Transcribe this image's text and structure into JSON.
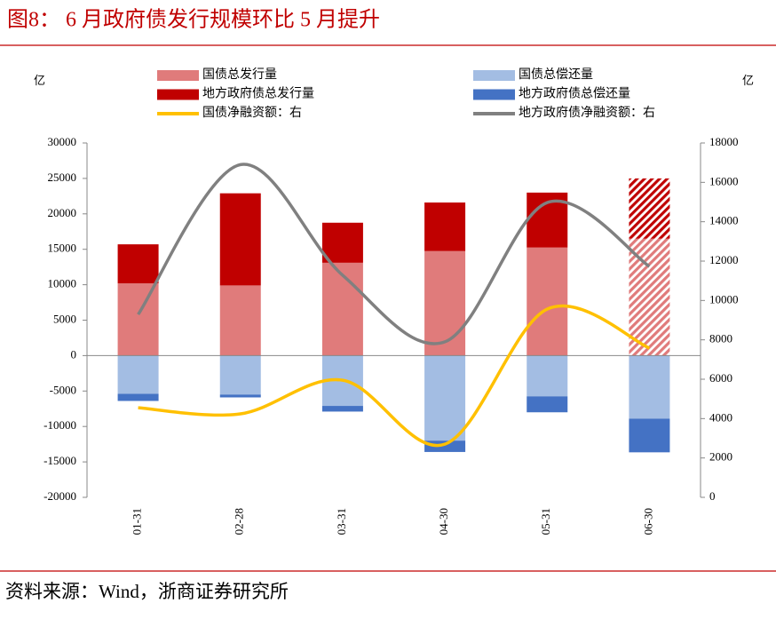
{
  "chart_data": {
    "type": "combo",
    "title": "图8：  6 月政府债发行规模环比 5 月提升",
    "source": "资料来源：Wind，浙商证券研究所",
    "y_unit": "亿",
    "y2_unit": "亿",
    "categories": [
      "01-31",
      "02-28",
      "03-31",
      "04-30",
      "05-31",
      "06-30"
    ],
    "series": [
      {
        "name": "国债总发行量",
        "type": "bar",
        "color": "#e07b7b",
        "values": [
          10200,
          9900,
          13100,
          14750,
          15250,
          16500
        ],
        "hatched": [
          false,
          false,
          false,
          false,
          false,
          true
        ]
      },
      {
        "name": "国债总偿还量",
        "type": "bar",
        "color": "#a3bde3",
        "values": [
          -5400,
          -5500,
          -7100,
          -12000,
          -5750,
          -8900
        ],
        "hatched": [
          false,
          false,
          false,
          false,
          false,
          false
        ]
      },
      {
        "name": "地方政府债总发行量",
        "type": "bar",
        "color": "#c00000",
        "values": [
          5500,
          13000,
          5650,
          6850,
          7750,
          8500
        ],
        "hatched": [
          false,
          false,
          false,
          false,
          false,
          true
        ]
      },
      {
        "name": "地方政府债总偿还量",
        "type": "bar",
        "color": "#4472c4",
        "values": [
          -1000,
          -400,
          -800,
          -1600,
          -2250,
          -4750
        ],
        "hatched": [
          false,
          false,
          false,
          false,
          false,
          false
        ]
      },
      {
        "name": "国债净融资额：右",
        "type": "line",
        "axis": "y2",
        "color": "#ffc000",
        "values": [
          4550,
          4240,
          5950,
          2700,
          9560,
          7580
        ]
      },
      {
        "name": "地方政府债净融资额：右",
        "type": "line",
        "axis": "y2",
        "color": "#808080",
        "values": [
          9290,
          16900,
          11280,
          7900,
          14970,
          11730
        ]
      }
    ],
    "ylim": [
      -20000,
      30000
    ],
    "yticks": [
      -20000,
      -15000,
      -10000,
      -5000,
      0,
      5000,
      10000,
      15000,
      20000,
      25000,
      30000
    ],
    "y2lim": [
      0,
      18000
    ],
    "y2ticks": [
      0,
      2000,
      4000,
      6000,
      8000,
      10000,
      12000,
      14000,
      16000,
      18000
    ],
    "smooth": true
  }
}
